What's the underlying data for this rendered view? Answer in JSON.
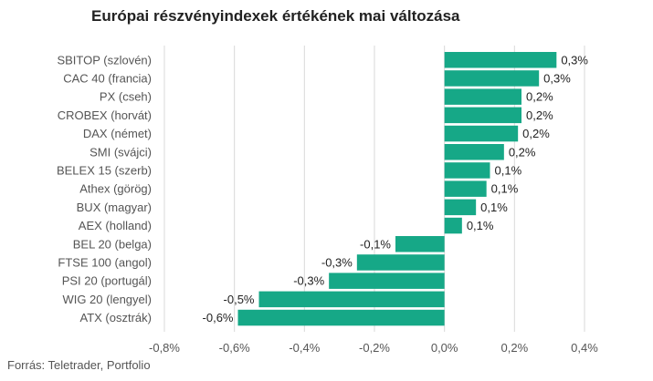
{
  "chart_data": {
    "type": "bar",
    "orientation": "horizontal",
    "title": "Európai részvényindexek értékének mai változása",
    "categories": [
      "SBITOP (szlovén)",
      "CAC 40 (francia)",
      "PX (cseh)",
      "CROBEX (horvát)",
      "DAX (német)",
      "SMI (svájci)",
      "BELEX 15 (szerb)",
      "Athex (görög)",
      "BUX (magyar)",
      "AEX (holland)",
      "BEL 20 (belga)",
      "FTSE 100 (angol)",
      "PSI 20 (portugál)",
      "WIG 20 (lengyel)",
      "ATX (osztrák)"
    ],
    "values": [
      0.32,
      0.27,
      0.22,
      0.22,
      0.21,
      0.17,
      0.13,
      0.12,
      0.09,
      0.05,
      -0.14,
      -0.25,
      -0.33,
      -0.53,
      -0.59
    ],
    "value_labels": [
      "0,3%",
      "0,3%",
      "0,2%",
      "0,2%",
      "0,2%",
      "0,2%",
      "0,1%",
      "0,1%",
      "0,1%",
      "0,1%",
      "-0,1%",
      "-0,3%",
      "-0,3%",
      "-0,5%",
      "-0,6%"
    ],
    "xlim": [
      -0.8,
      0.4
    ],
    "xticks": [
      -0.8,
      -0.6,
      -0.4,
      -0.2,
      0.0,
      0.2,
      0.4
    ],
    "xtick_labels": [
      "-0,8%",
      "-0,6%",
      "-0,4%",
      "-0,2%",
      "0,0%",
      "0,2%",
      "0,4%"
    ],
    "grid": "vertical",
    "bar_color": "#16a887",
    "source": "Forrás: Teletrader, Portfolio"
  }
}
